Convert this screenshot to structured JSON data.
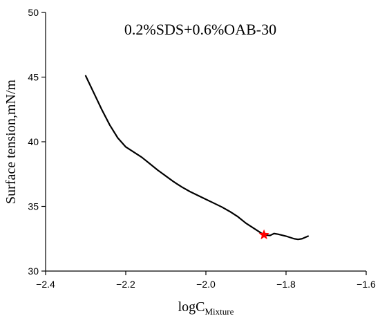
{
  "chart_data": {
    "type": "line",
    "title": "0.2%SDS+0.6%OAB-30",
    "xlabel": {
      "main": "logC",
      "subscript": "Mixture"
    },
    "ylabel": "Surface tension,mN/m",
    "xlim": [
      -2.4,
      -1.6
    ],
    "ylim": [
      30,
      50
    ],
    "xticks": [
      -2.4,
      -2.2,
      -2.0,
      -1.8,
      -1.6
    ],
    "yticks": [
      30,
      35,
      40,
      45,
      50
    ],
    "xtick_labels": [
      "−2.4",
      "−2.2",
      "−2.0",
      "−1.8",
      "−1.6"
    ],
    "ytick_labels": [
      "30",
      "35",
      "40",
      "45",
      "50"
    ],
    "grid": false,
    "series": [
      {
        "color": "#000000",
        "x": [
          -2.3,
          -2.28,
          -2.26,
          -2.24,
          -2.22,
          -2.2,
          -2.18,
          -2.16,
          -2.14,
          -2.12,
          -2.1,
          -2.08,
          -2.06,
          -2.04,
          -2.02,
          -2.0,
          -1.98,
          -1.96,
          -1.94,
          -1.92,
          -1.9,
          -1.88,
          -1.86,
          -1.855,
          -1.84,
          -1.83,
          -1.82,
          -1.8,
          -1.79,
          -1.78,
          -1.77,
          -1.76,
          -1.745
        ],
        "y": [
          45.1,
          43.8,
          42.5,
          41.3,
          40.3,
          39.6,
          39.2,
          38.8,
          38.3,
          37.8,
          37.35,
          36.9,
          36.5,
          36.15,
          35.85,
          35.55,
          35.25,
          34.95,
          34.6,
          34.2,
          33.7,
          33.3,
          32.9,
          32.8,
          32.75,
          32.9,
          32.85,
          32.7,
          32.6,
          32.5,
          32.45,
          32.5,
          32.7
        ]
      }
    ],
    "marker": {
      "x": -1.855,
      "y": 32.8,
      "shape": "star",
      "color": "#ff0000"
    }
  }
}
